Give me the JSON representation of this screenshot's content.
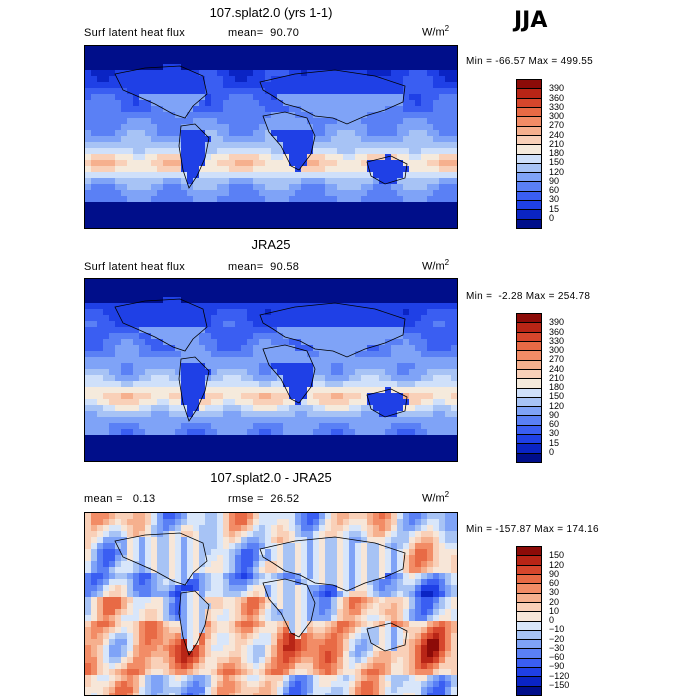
{
  "season": "JJA",
  "units": "W/m",
  "units_sup": "2",
  "palettes": {
    "abs": [
      "#000e8a",
      "#0a24c4",
      "#1f40e6",
      "#3a5ef2",
      "#5a80f5",
      "#7fa3f7",
      "#a7c3f5",
      "#cfe0fa",
      "#f5eadc",
      "#f9d0b8",
      "#f6b08e",
      "#f28c66",
      "#e86a45",
      "#d6462c",
      "#b82516",
      "#8c0b08"
    ],
    "diff": [
      "#000e8a",
      "#0a24c4",
      "#1f40e6",
      "#3a5ef2",
      "#5a80f5",
      "#7fa3f7",
      "#a7c3f5",
      "#d8e6fa",
      "#f7e6d8",
      "#f9d0b8",
      "#f6b08e",
      "#f28c66",
      "#e86a45",
      "#d6462c",
      "#b82516",
      "#8c0b08"
    ]
  },
  "chart_data": [
    {
      "type": "heatmap",
      "title": "107.splat2.0 (yrs 1-1)",
      "variable": "Surf latent heat flux",
      "stat_text": "mean=  90.70",
      "minmax": "Min = -66.57 Max = 499.55",
      "min": -66.57,
      "max": 499.55,
      "mean": 90.7,
      "levels": [
        "390",
        "360",
        "330",
        "300",
        "270",
        "240",
        "210",
        "180",
        "150",
        "120",
        "90",
        "60",
        "30",
        "15",
        "0"
      ],
      "palette": "abs"
    },
    {
      "type": "heatmap",
      "title": "JRA25",
      "variable": "Surf latent heat flux",
      "stat_text": "mean=  90.58",
      "minmax": "Min =  -2.28 Max = 254.78",
      "min": -2.28,
      "max": 254.78,
      "mean": 90.58,
      "levels": [
        "390",
        "360",
        "330",
        "300",
        "270",
        "240",
        "210",
        "180",
        "150",
        "120",
        "90",
        "60",
        "30",
        "15",
        "0"
      ],
      "palette": "abs"
    },
    {
      "type": "heatmap",
      "title": "107.splat2.0 - JRA25",
      "variable": "mean =   0.13",
      "stat_text": "rmse =  26.52",
      "minmax": "Min = -157.87 Max = 174.16",
      "min": -157.87,
      "max": 174.16,
      "mean": 0.13,
      "rmse": 26.52,
      "levels": [
        "150",
        "120",
        "90",
        "60",
        "30",
        "20",
        "10",
        "0",
        "−10",
        "−20",
        "−30",
        "−60",
        "−90",
        "−120",
        "−150"
      ],
      "palette": "diff"
    }
  ]
}
